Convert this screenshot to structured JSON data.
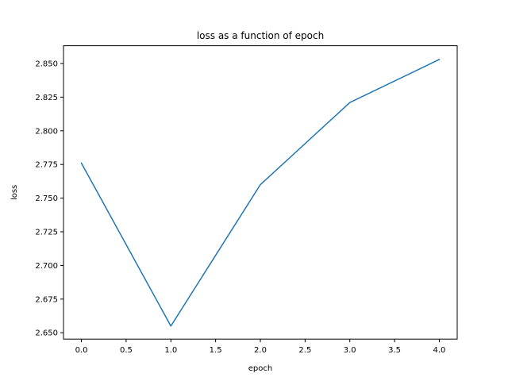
{
  "chart_data": {
    "type": "line",
    "title": "loss as a function of epoch",
    "xlabel": "epoch",
    "ylabel": "loss",
    "x": [
      0,
      1,
      2,
      3,
      4
    ],
    "series": [
      {
        "values": [
          2.776,
          2.655,
          2.76,
          2.821,
          2.853
        ],
        "color": "#1f77b4"
      }
    ],
    "xlim": [
      -0.2,
      4.2
    ],
    "ylim": [
      2.6453,
      2.8632
    ],
    "xticks": [
      0.0,
      0.5,
      1.0,
      1.5,
      2.0,
      2.5,
      3.0,
      3.5,
      4.0
    ],
    "xtick_labels": [
      "0.0",
      "0.5",
      "1.0",
      "1.5",
      "2.0",
      "2.5",
      "3.0",
      "3.5",
      "4.0"
    ],
    "yticks": [
      2.65,
      2.675,
      2.7,
      2.725,
      2.75,
      2.775,
      2.8,
      2.825,
      2.85
    ],
    "ytick_labels": [
      "2.650",
      "2.675",
      "2.700",
      "2.725",
      "2.750",
      "2.775",
      "2.800",
      "2.825",
      "2.850"
    ],
    "grid": false,
    "legend": false
  }
}
